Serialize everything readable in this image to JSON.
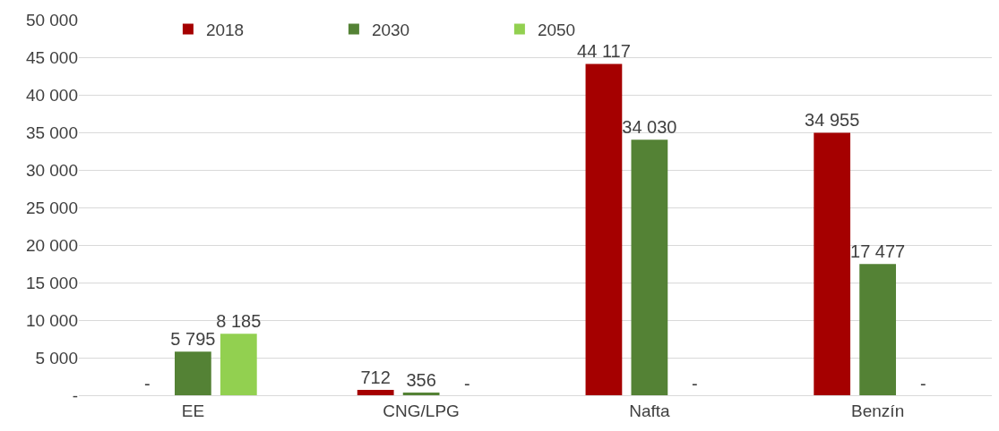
{
  "chart_data": {
    "type": "bar",
    "categories": [
      "EE",
      "CNG/LPG",
      "Nafta",
      "Benzín"
    ],
    "series": [
      {
        "name": "2018",
        "color": "#a50000",
        "values": [
          null,
          712,
          44117,
          34955
        ],
        "value_labels": [
          "-",
          "712",
          "44 117",
          "34 955"
        ]
      },
      {
        "name": "2030",
        "color": "#548235",
        "values": [
          5795,
          356,
          34030,
          17477
        ],
        "value_labels": [
          "5 795",
          "356",
          "34 030",
          "17 477"
        ]
      },
      {
        "name": "2050",
        "color": "#92d050",
        "values": [
          8185,
          null,
          null,
          null
        ],
        "value_labels": [
          "8 185",
          "-",
          "-",
          "-"
        ]
      }
    ],
    "ylim": [
      0,
      50000
    ],
    "yticks": [
      {
        "value": 0,
        "label": "-"
      },
      {
        "value": 5000,
        "label": "5 000"
      },
      {
        "value": 10000,
        "label": "10 000"
      },
      {
        "value": 15000,
        "label": "15 000"
      },
      {
        "value": 20000,
        "label": "20 000"
      },
      {
        "value": 25000,
        "label": "25 000"
      },
      {
        "value": 30000,
        "label": "30 000"
      },
      {
        "value": 35000,
        "label": "35 000"
      },
      {
        "value": 40000,
        "label": "40 000"
      },
      {
        "value": 45000,
        "label": "45 000"
      },
      {
        "value": 50000,
        "label": "50 000"
      }
    ],
    "grid": "y",
    "legend": "top"
  }
}
